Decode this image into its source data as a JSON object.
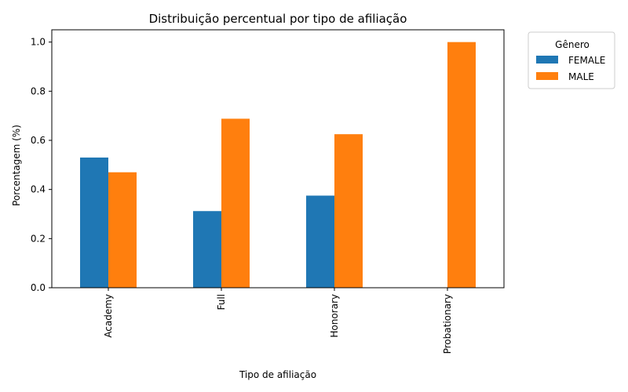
{
  "chart_data": {
    "type": "bar",
    "title": "Distribuição percentual por tipo de afiliação",
    "xlabel": "Tipo de afiliação",
    "ylabel": "Porcentagem (%)",
    "categories": [
      "Academy",
      "Full",
      "Honorary",
      "Probationary"
    ],
    "series": [
      {
        "name": "FEMALE",
        "color": "#1f77b4",
        "values": [
          0.53,
          0.312,
          0.375,
          0.0
        ]
      },
      {
        "name": "MALE",
        "color": "#ff7f0e",
        "values": [
          0.47,
          0.688,
          0.625,
          1.0
        ]
      }
    ],
    "ylim": [
      0,
      1.05
    ],
    "yticks": [
      "0.0",
      "0.2",
      "0.4",
      "0.6",
      "0.8",
      "1.0"
    ],
    "legend": {
      "title": "Gênero",
      "placement": "outside-top-right"
    },
    "grid": false
  }
}
